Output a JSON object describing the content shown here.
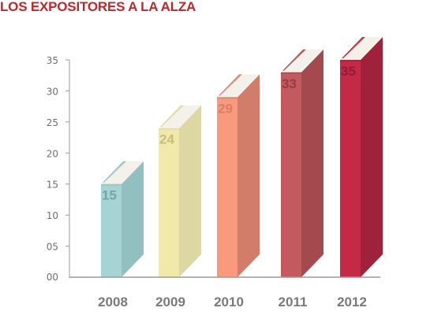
{
  "chart_data": {
    "type": "bar",
    "title": "LOS EXPOSITORES A LA ALZA",
    "categories": [
      "2008",
      "2009",
      "2010",
      "2011",
      "2012"
    ],
    "values": [
      15,
      24,
      29,
      33,
      35
    ],
    "value_labels": [
      "15",
      "24",
      "29",
      "33",
      "35"
    ],
    "y_ticks": [
      0,
      5,
      10,
      15,
      20,
      25,
      30,
      35
    ],
    "y_tick_labels": [
      "00",
      "05",
      "10",
      "15",
      "20",
      "25",
      "30",
      "35"
    ],
    "ylim": [
      0,
      35
    ],
    "xlabel": "",
    "ylabel": "",
    "grid": false,
    "legend": "none",
    "bar_style": "3d-book",
    "colors": {
      "title": "#c0272d",
      "axis": "#9a9a9a",
      "tick_text": "#6f6f6f",
      "category_text": "#7a7a7a",
      "page_top": "#f3f1ea",
      "bars": [
        {
          "front": "#a6d3d3",
          "side": "#92c0c1",
          "label": "#6fa7aa"
        },
        {
          "front": "#f1e9aa",
          "side": "#ddd7a3",
          "label": "#c8bd78"
        },
        {
          "front": "#f99a7e",
          "side": "#d27d6a",
          "label": "#dd7b63"
        },
        {
          "front": "#c35a5f",
          "side": "#a44a4f",
          "label": "#973c43"
        },
        {
          "front": "#c42a48",
          "side": "#a0223a",
          "label": "#8e1d34"
        }
      ]
    }
  }
}
